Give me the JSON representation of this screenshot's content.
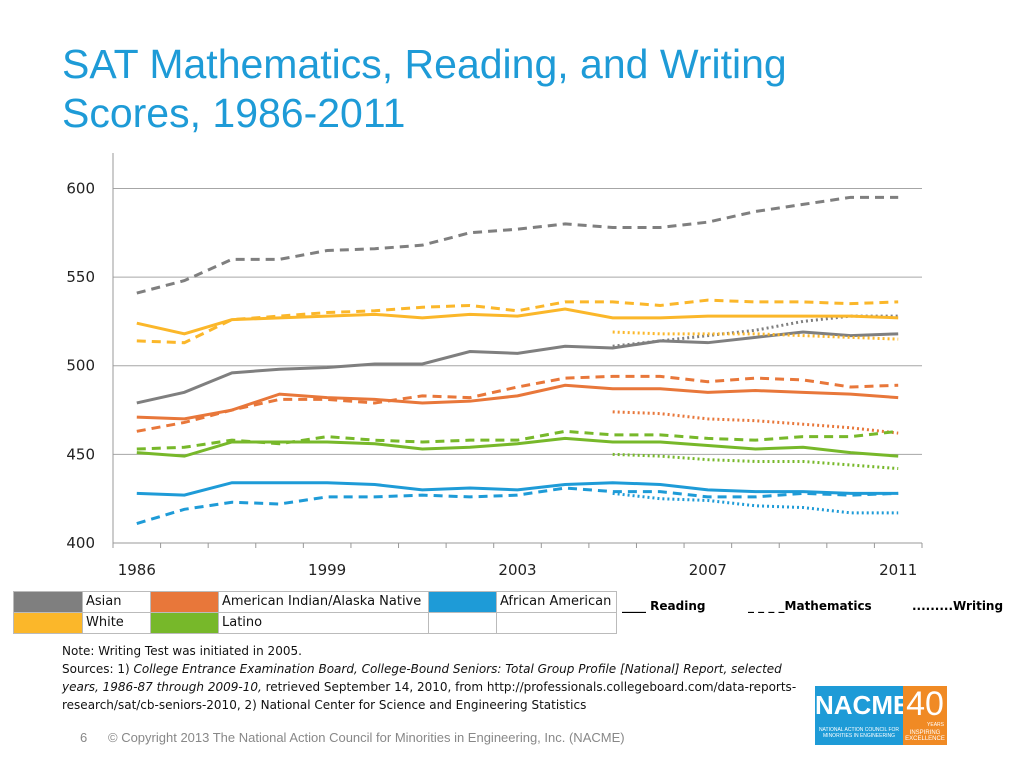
{
  "title": "SAT Mathematics, Reading, and Writing Scores, 1986-2011",
  "chart_data": {
    "type": "line",
    "categories": [
      "1986",
      null,
      null,
      null,
      "1999",
      null,
      null,
      null,
      "2003",
      null,
      null,
      null,
      "2007",
      null,
      null,
      null,
      "2011"
    ],
    "ylim": [
      400,
      620
    ],
    "yticks": [
      400,
      450,
      500,
      550,
      600
    ],
    "grid": true,
    "groups": [
      {
        "name": "Asian",
        "color": "#7f7f7f",
        "reading": [
          479,
          485,
          496,
          498,
          499,
          501,
          501,
          508,
          507,
          511,
          510,
          514,
          513,
          516,
          519,
          517,
          518
        ],
        "mathematics": [
          541,
          548,
          560,
          560,
          565,
          566,
          568,
          575,
          577,
          580,
          578,
          578,
          581,
          587,
          591,
          595,
          595
        ],
        "writing": [
          null,
          null,
          null,
          null,
          null,
          null,
          null,
          null,
          null,
          null,
          511,
          514,
          517,
          520,
          525,
          528,
          528
        ]
      },
      {
        "name": "American Indian/Alaska Native",
        "color": "#e8773a",
        "reading": [
          471,
          470,
          475,
          484,
          482,
          481,
          479,
          480,
          483,
          489,
          487,
          487,
          485,
          486,
          485,
          484,
          482
        ],
        "mathematics": [
          463,
          468,
          475,
          481,
          481,
          479,
          483,
          482,
          488,
          493,
          494,
          494,
          491,
          493,
          492,
          488,
          489
        ],
        "writing": [
          null,
          null,
          null,
          null,
          null,
          null,
          null,
          null,
          null,
          null,
          474,
          473,
          470,
          469,
          467,
          465,
          462
        ]
      },
      {
        "name": "African American",
        "color": "#1e9bd7",
        "reading": [
          428,
          427,
          434,
          434,
          434,
          433,
          430,
          431,
          430,
          433,
          434,
          433,
          430,
          429,
          429,
          428,
          428
        ],
        "mathematics": [
          411,
          419,
          423,
          422,
          426,
          426,
          427,
          426,
          427,
          431,
          429,
          429,
          426,
          426,
          428,
          427,
          428
        ],
        "writing": [
          null,
          null,
          null,
          null,
          null,
          null,
          null,
          null,
          null,
          null,
          428,
          425,
          424,
          421,
          420,
          417,
          417
        ]
      },
      {
        "name": "White",
        "color": "#fbb72a",
        "reading": [
          524,
          518,
          526,
          527,
          528,
          529,
          527,
          529,
          528,
          532,
          527,
          527,
          528,
          528,
          528,
          528,
          527
        ],
        "mathematics": [
          514,
          513,
          526,
          528,
          530,
          531,
          533,
          534,
          531,
          536,
          536,
          534,
          537,
          536,
          536,
          535,
          536
        ],
        "writing": [
          null,
          null,
          null,
          null,
          null,
          null,
          null,
          null,
          null,
          null,
          519,
          518,
          518,
          518,
          517,
          516,
          515
        ]
      },
      {
        "name": "Latino",
        "color": "#77b82a",
        "reading": [
          451,
          449,
          457,
          457,
          457,
          456,
          453,
          454,
          456,
          459,
          457,
          457,
          455,
          453,
          454,
          451,
          449
        ],
        "mathematics": [
          453,
          454,
          458,
          456,
          460,
          458,
          457,
          458,
          458,
          463,
          461,
          461,
          459,
          458,
          460,
          460,
          463
        ],
        "writing": [
          null,
          null,
          null,
          null,
          null,
          null,
          null,
          null,
          null,
          null,
          450,
          449,
          447,
          446,
          446,
          444,
          442
        ]
      }
    ],
    "line_key": [
      "____ Reading",
      "_ _ _ _Mathematics",
      ".........Writing"
    ]
  },
  "note": "Note: Writing Test was  initiated in 2005.",
  "sources": [
    "Sources: 1) ",
    "College Entrance Examination Board, College-Bound Seniors: Total Group Profile [National] Report, selected years, 1986-87 through 2009-10,",
    " retrieved September 14, 2010, from http://professionals.collegeboard.com/data-reports-research/sat/cb-seniors-2010, 2)  National Center for Science and Engineering Statistics"
  ],
  "footer": {
    "page": "6",
    "copyright": "© Copyright 2013 The National Action Council for Minorities in Engineering, Inc. (NACME)"
  },
  "logo": {
    "name": "NACME",
    "number": "40",
    "years": "YEARS",
    "council": "NATIONAL ACTION COUNCIL FOR MINORITIES IN ENGINEERING",
    "tagline": "INSPIRING EXCELLENCE"
  }
}
